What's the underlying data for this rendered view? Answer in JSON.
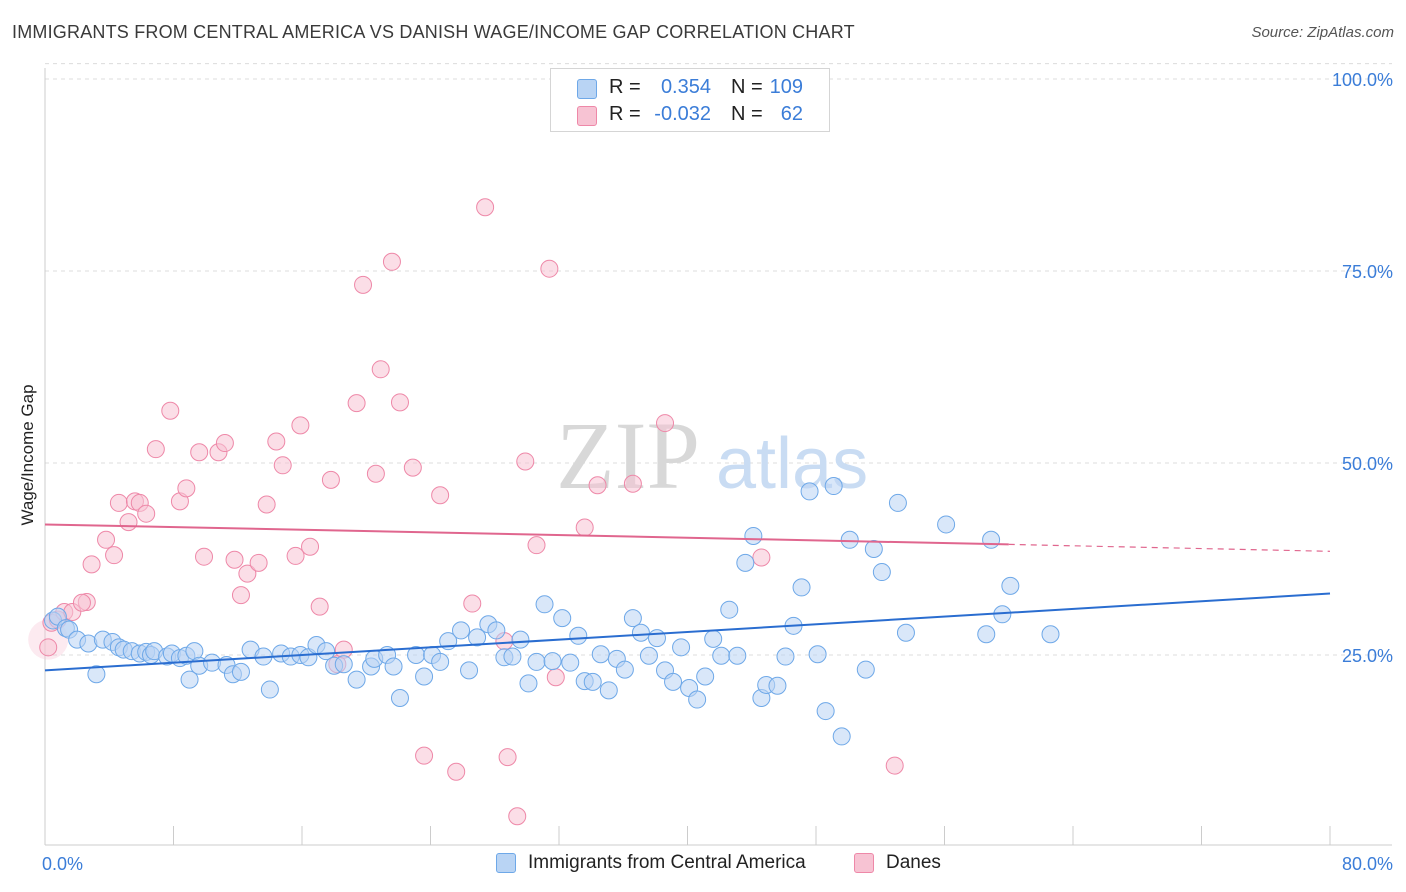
{
  "title": "IMMIGRANTS FROM CENTRAL AMERICA VS DANISH WAGE/INCOME GAP CORRELATION CHART",
  "source": "Source: ZipAtlas.com",
  "watermark": {
    "zip": "ZIP",
    "atlas": "atlas"
  },
  "legend": {
    "rows": [
      {
        "r_label": "R =",
        "r_value": "0.354",
        "n_label": "N =",
        "n_value": "109"
      },
      {
        "r_label": "R =",
        "r_value": "-0.032",
        "n_label": "N =",
        "n_value": "62"
      }
    ]
  },
  "colors": {
    "blue": "#6ea8e8",
    "blue_fill": "#b9d4f4",
    "blue_line": "#2a6dd0",
    "pink": "#ee88a8",
    "pink_fill": "#f7c3d3",
    "pink_line": "#e0668e",
    "axis_text": "#3b7dd8",
    "grid": "#dcdcdc"
  },
  "chart_data": {
    "type": "scatter",
    "xlabel": "",
    "ylabel": "Wage/Income Gap",
    "xlim": [
      0,
      80
    ],
    "ylim": [
      0,
      102
    ],
    "x_tick_labels": [
      "0.0%",
      "80.0%"
    ],
    "y_ticks": [
      25,
      50,
      75,
      100
    ],
    "y_tick_labels": [
      "25.0%",
      "50.0%",
      "75.0%",
      "100.0%"
    ],
    "grid": true,
    "legend_position": "top-center",
    "series": [
      {
        "name": "Immigrants from Central America",
        "color": "#6ea8e8",
        "trend": {
          "x": [
            0,
            80
          ],
          "y": [
            23.0,
            33.0
          ]
        },
        "points": [
          [
            0.5,
            29.5
          ],
          [
            0.8,
            30
          ],
          [
            1.3,
            28.5
          ],
          [
            1.5,
            28.3
          ],
          [
            2,
            27
          ],
          [
            2.7,
            26.5
          ],
          [
            3.2,
            22.5
          ],
          [
            3.6,
            27
          ],
          [
            4.2,
            26.7
          ],
          [
            4.6,
            26
          ],
          [
            4.9,
            25.7
          ],
          [
            5.4,
            25.5
          ],
          [
            5.9,
            25.2
          ],
          [
            6.3,
            25.4
          ],
          [
            6.6,
            25
          ],
          [
            6.8,
            25.5
          ],
          [
            7.6,
            24.8
          ],
          [
            7.9,
            25.2
          ],
          [
            8.4,
            24.6
          ],
          [
            8.8,
            24.9
          ],
          [
            9.3,
            25.5
          ],
          [
            9.0,
            21.8
          ],
          [
            9.6,
            23.6
          ],
          [
            10.4,
            24
          ],
          [
            11.3,
            23.7
          ],
          [
            11.7,
            22.5
          ],
          [
            12.2,
            22.8
          ],
          [
            12.8,
            25.7
          ],
          [
            13.6,
            24.8
          ],
          [
            14.0,
            20.5
          ],
          [
            14.7,
            25.2
          ],
          [
            15.3,
            24.8
          ],
          [
            15.9,
            25
          ],
          [
            16.4,
            24.7
          ],
          [
            16.9,
            26.3
          ],
          [
            17.5,
            25.5
          ],
          [
            18.0,
            23.6
          ],
          [
            18.6,
            23.8
          ],
          [
            19.4,
            21.8
          ],
          [
            20.3,
            23.5
          ],
          [
            20.5,
            24.5
          ],
          [
            21.3,
            25
          ],
          [
            21.7,
            23.5
          ],
          [
            22.1,
            19.4
          ],
          [
            23.1,
            25
          ],
          [
            23.6,
            22.2
          ],
          [
            24.1,
            25
          ],
          [
            24.6,
            24.1
          ],
          [
            25.1,
            26.8
          ],
          [
            25.9,
            28.2
          ],
          [
            26.4,
            23
          ],
          [
            26.9,
            27.3
          ],
          [
            27.6,
            29
          ],
          [
            28.1,
            28.2
          ],
          [
            28.6,
            24.7
          ],
          [
            29.1,
            24.8
          ],
          [
            29.6,
            27
          ],
          [
            30.1,
            21.3
          ],
          [
            30.6,
            24.1
          ],
          [
            31.1,
            31.6
          ],
          [
            31.6,
            24.2
          ],
          [
            32.2,
            29.8
          ],
          [
            32.7,
            24
          ],
          [
            33.2,
            27.5
          ],
          [
            33.6,
            21.6
          ],
          [
            34.1,
            21.5
          ],
          [
            34.6,
            25.1
          ],
          [
            35.1,
            20.4
          ],
          [
            35.6,
            24.5
          ],
          [
            36.1,
            23.1
          ],
          [
            36.6,
            29.8
          ],
          [
            37.1,
            27.9
          ],
          [
            37.6,
            24.9
          ],
          [
            38.1,
            27.2
          ],
          [
            38.6,
            23
          ],
          [
            39.1,
            21.5
          ],
          [
            39.6,
            26
          ],
          [
            40.1,
            20.7
          ],
          [
            40.6,
            19.2
          ],
          [
            41.1,
            22.2
          ],
          [
            41.6,
            27.1
          ],
          [
            42.1,
            24.9
          ],
          [
            42.6,
            30.9
          ],
          [
            43.1,
            24.9
          ],
          [
            43.6,
            37
          ],
          [
            44.1,
            40.5
          ],
          [
            44.6,
            19.4
          ],
          [
            44.9,
            21.1
          ],
          [
            45.6,
            21
          ],
          [
            46.1,
            24.8
          ],
          [
            46.6,
            28.8
          ],
          [
            47.1,
            33.8
          ],
          [
            47.6,
            46.3
          ],
          [
            48.1,
            25.1
          ],
          [
            48.6,
            17.7
          ],
          [
            49.1,
            47
          ],
          [
            49.6,
            14.4
          ],
          [
            50.1,
            40
          ],
          [
            51.1,
            23.1
          ],
          [
            51.6,
            38.8
          ],
          [
            52.1,
            35.8
          ],
          [
            53.1,
            44.8
          ],
          [
            53.6,
            27.9
          ],
          [
            56.1,
            42
          ],
          [
            58.6,
            27.7
          ],
          [
            58.9,
            40
          ],
          [
            59.6,
            30.3
          ],
          [
            60.1,
            34
          ],
          [
            62.6,
            27.7
          ]
        ]
      },
      {
        "name": "Danes",
        "color": "#ee88a8",
        "trend": {
          "x": [
            0,
            60
          ],
          "y": [
            42.0,
            39.4
          ]
        },
        "trend_dashed": {
          "x": [
            60,
            80
          ],
          "y": [
            39.4,
            38.5
          ]
        },
        "points": [
          [
            0.2,
            26
          ],
          [
            0.4,
            29.2
          ],
          [
            0.8,
            29.6
          ],
          [
            1.2,
            30.6
          ],
          [
            1.7,
            30.6
          ],
          [
            2.6,
            31.9
          ],
          [
            2.3,
            31.8
          ],
          [
            2.9,
            36.8
          ],
          [
            3.8,
            40
          ],
          [
            4.3,
            38
          ],
          [
            4.6,
            44.8
          ],
          [
            5.2,
            42.3
          ],
          [
            5.6,
            45
          ],
          [
            5.9,
            44.8
          ],
          [
            6.3,
            43.4
          ],
          [
            6.9,
            51.8
          ],
          [
            7.8,
            56.8
          ],
          [
            8.4,
            45
          ],
          [
            8.8,
            46.7
          ],
          [
            9.6,
            51.4
          ],
          [
            9.9,
            37.8
          ],
          [
            10.8,
            51.4
          ],
          [
            11.2,
            52.6
          ],
          [
            11.8,
            37.4
          ],
          [
            12.2,
            32.8
          ],
          [
            12.6,
            35.6
          ],
          [
            13.3,
            37
          ],
          [
            13.8,
            44.6
          ],
          [
            14.4,
            52.8
          ],
          [
            14.8,
            49.7
          ],
          [
            15.6,
            37.9
          ],
          [
            15.9,
            54.9
          ],
          [
            16.5,
            39.1
          ],
          [
            17.1,
            31.3
          ],
          [
            17.8,
            47.8
          ],
          [
            18.2,
            23.8
          ],
          [
            18.6,
            25.7
          ],
          [
            19.4,
            57.8
          ],
          [
            19.8,
            73.2
          ],
          [
            20.6,
            48.6
          ],
          [
            20.9,
            62.2
          ],
          [
            21.6,
            76.2
          ],
          [
            22.1,
            57.9
          ],
          [
            22.9,
            49.4
          ],
          [
            23.6,
            11.9
          ],
          [
            24.6,
            45.8
          ],
          [
            25.6,
            9.8
          ],
          [
            26.6,
            31.7
          ],
          [
            27.4,
            83.3
          ],
          [
            28.6,
            26.8
          ],
          [
            28.8,
            11.7
          ],
          [
            29.4,
            4
          ],
          [
            29.9,
            50.2
          ],
          [
            30.6,
            39.3
          ],
          [
            31.4,
            75.3
          ],
          [
            31.8,
            22.1
          ],
          [
            33.6,
            41.6
          ],
          [
            34.4,
            47.1
          ],
          [
            36.6,
            47.3
          ],
          [
            38.6,
            55.2
          ],
          [
            44.6,
            37.7
          ],
          [
            52.9,
            10.6
          ]
        ]
      }
    ]
  },
  "bottom_legend": [
    {
      "label": "Immigrants from Central America"
    },
    {
      "label": "Danes"
    }
  ]
}
